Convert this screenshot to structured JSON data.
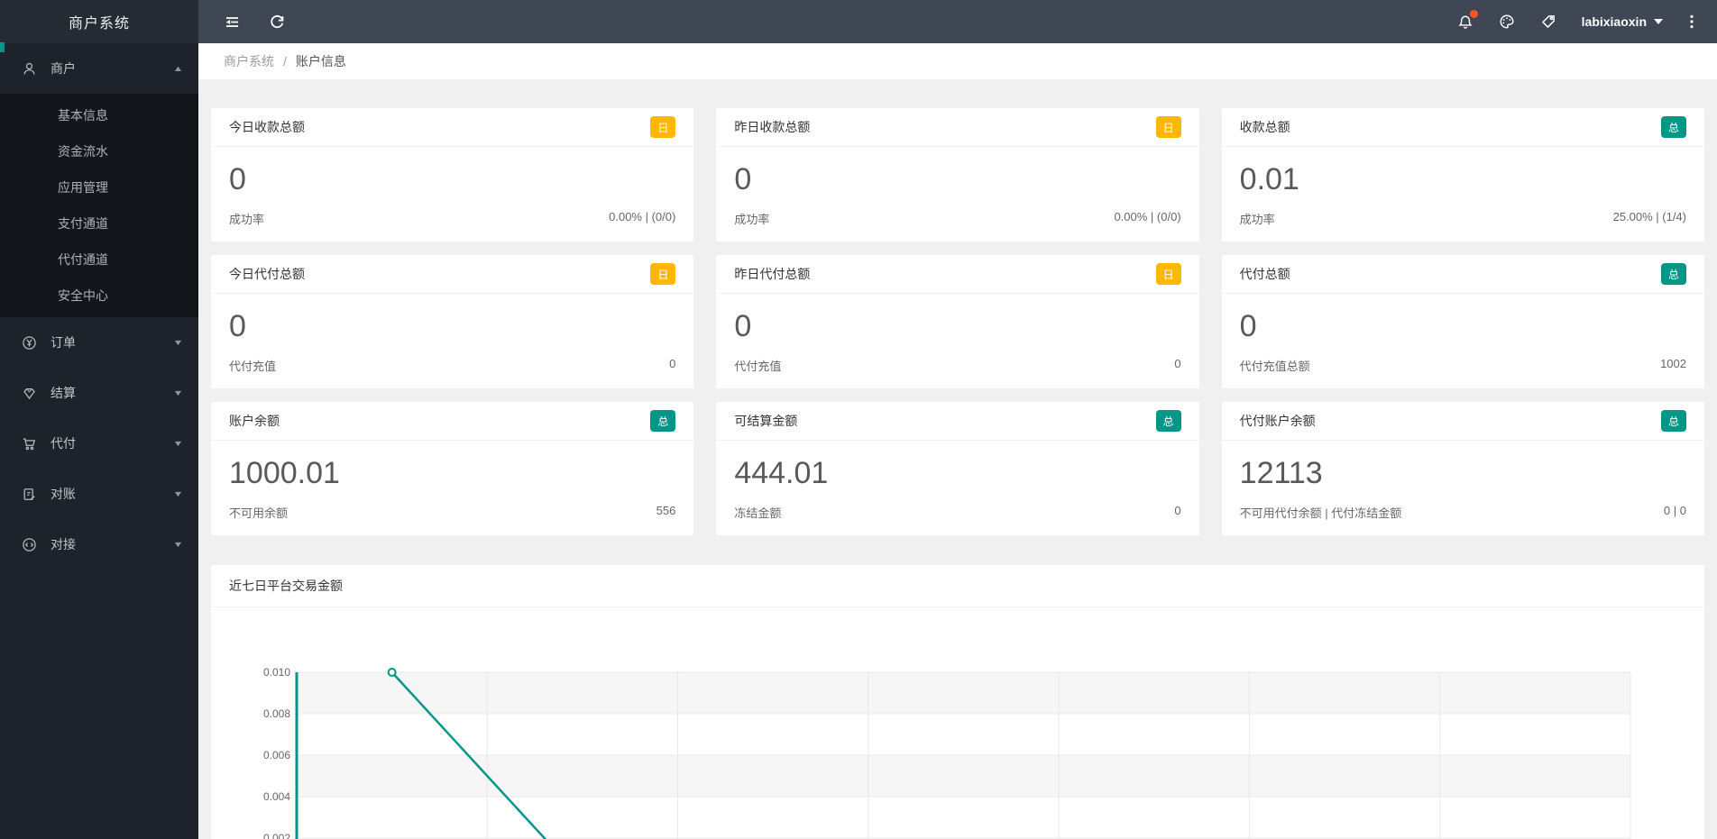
{
  "app": {
    "title": "商户系统"
  },
  "topbar": {
    "username": "labixiaoxin",
    "has_notification_dot": true,
    "notification_dot_color": "#FF5722"
  },
  "breadcrumb": {
    "root": "商户系统",
    "separator": "/",
    "current": "账户信息"
  },
  "sidebar": {
    "sections": [
      {
        "label": "商户",
        "icon": "user",
        "expanded": true,
        "children": [
          "基本信息",
          "资金流水",
          "应用管理",
          "支付通道",
          "代付通道",
          "安全中心"
        ]
      },
      {
        "label": "订单",
        "icon": "yen-circle",
        "expanded": false
      },
      {
        "label": "结算",
        "icon": "gem",
        "expanded": false
      },
      {
        "label": "代付",
        "icon": "cart",
        "expanded": false
      },
      {
        "label": "对账",
        "icon": "doc-edit",
        "expanded": false
      },
      {
        "label": "对接",
        "icon": "code-circle",
        "expanded": false
      }
    ]
  },
  "cards": [
    {
      "title": "今日收款总额",
      "badge": "日",
      "badge_color": "#FFB800",
      "value": "0",
      "footer_label": "成功率",
      "footer_value": "0.00% | (0/0)"
    },
    {
      "title": "昨日收款总额",
      "badge": "日",
      "badge_color": "#FFB800",
      "value": "0",
      "footer_label": "成功率",
      "footer_value": "0.00% | (0/0)"
    },
    {
      "title": "收款总额",
      "badge": "总",
      "badge_color": "#009688",
      "value": "0.01",
      "footer_label": "成功率",
      "footer_value": "25.00% | (1/4)"
    },
    {
      "title": "今日代付总额",
      "badge": "日",
      "badge_color": "#FFB800",
      "value": "0",
      "footer_label": "代付充值",
      "footer_value": "0"
    },
    {
      "title": "昨日代付总额",
      "badge": "日",
      "badge_color": "#FFB800",
      "value": "0",
      "footer_label": "代付充值",
      "footer_value": "0"
    },
    {
      "title": "代付总额",
      "badge": "总",
      "badge_color": "#009688",
      "value": "0",
      "footer_label": "代付充值总额",
      "footer_value": "1002"
    },
    {
      "title": "账户余额",
      "badge": "总",
      "badge_color": "#009688",
      "value": "1000.01",
      "footer_label": "不可用余额",
      "footer_value": "556"
    },
    {
      "title": "可结算金额",
      "badge": "总",
      "badge_color": "#009688",
      "value": "444.01",
      "footer_label": "冻结金额",
      "footer_value": "0"
    },
    {
      "title": "代付账户余额",
      "badge": "总",
      "badge_color": "#009688",
      "value": "12113",
      "footer_label": "不可用代付余额 | 代付冻结金额",
      "footer_value": "0 | 0"
    }
  ],
  "chart_data": {
    "type": "line",
    "title": "近七日平台交易金额",
    "y_ticks": [
      "0.010",
      "0.008",
      "0.006",
      "0.004",
      "0.002"
    ],
    "y_max": 0.01,
    "y_tick_step": 0.002,
    "num_columns": 7,
    "x_tick_labels_visible": false,
    "series": [
      {
        "name": "近七日平台交易金额",
        "values": [
          0.01,
          0
        ]
      }
    ],
    "line_color": "#009688",
    "axis_color": "#009688",
    "marker": "hollow-circle",
    "grid": true,
    "alternating_bands": true,
    "band_color": "#F6F6F6"
  },
  "colors": {
    "accent_teal": "#009688",
    "accent_amber": "#FFB800",
    "topbar": "#3E4753",
    "sidebar": "#1E222A"
  }
}
